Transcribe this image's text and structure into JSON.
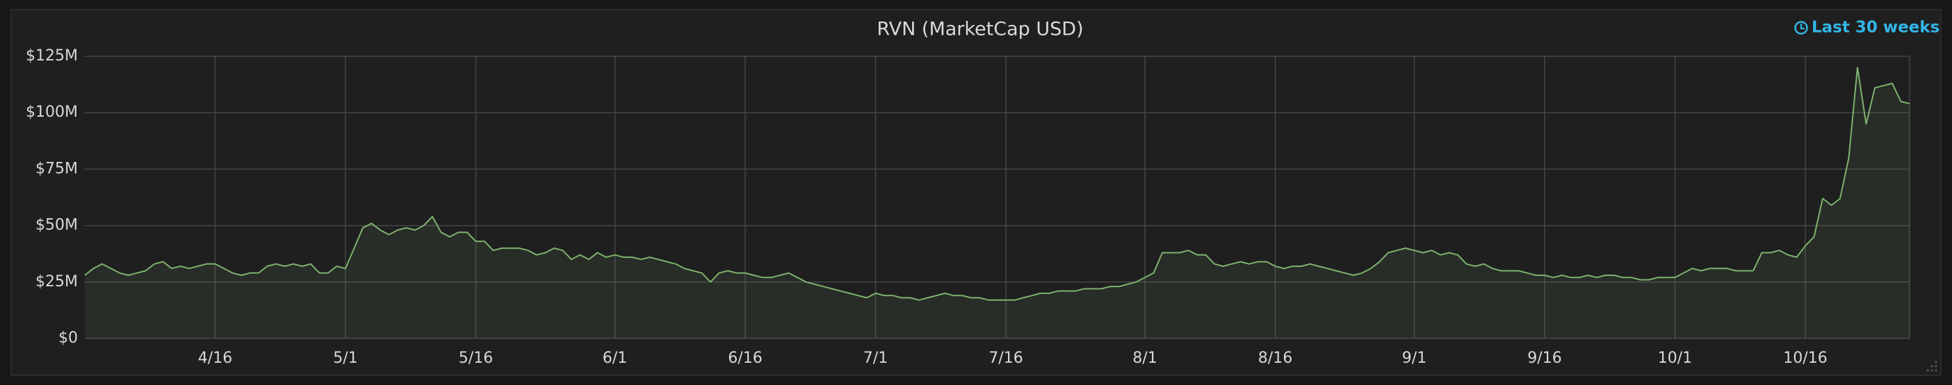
{
  "chart_data": {
    "type": "line",
    "title": "RVN (MarketCap USD)",
    "time_range": "Last 30 weeks",
    "categories": [
      null,
      null,
      null,
      null,
      null,
      null,
      null,
      null,
      null,
      null,
      null,
      null,
      null,
      null,
      null,
      "4/16",
      null,
      null,
      null,
      null,
      null,
      null,
      null,
      null,
      null,
      null,
      null,
      null,
      null,
      null,
      "5/1",
      null,
      null,
      null,
      null,
      null,
      null,
      null,
      null,
      null,
      null,
      null,
      null,
      null,
      null,
      "5/16",
      null,
      null,
      null,
      null,
      null,
      null,
      null,
      null,
      null,
      null,
      null,
      null,
      null,
      null,
      null,
      "6/1",
      null,
      null,
      null,
      null,
      null,
      null,
      null,
      null,
      null,
      null,
      null,
      null,
      null,
      null,
      "6/16",
      null,
      null,
      null,
      null,
      null,
      null,
      null,
      null,
      null,
      null,
      null,
      null,
      null,
      null,
      "7/1",
      null,
      null,
      null,
      null,
      null,
      null,
      null,
      null,
      null,
      null,
      null,
      null,
      null,
      null,
      "7/16",
      null,
      null,
      null,
      null,
      null,
      null,
      null,
      null,
      null,
      null,
      null,
      null,
      null,
      null,
      null,
      "8/1",
      null,
      null,
      null,
      null,
      null,
      null,
      null,
      null,
      null,
      null,
      null,
      null,
      null,
      null,
      "8/16",
      null,
      null,
      null,
      null,
      null,
      null,
      null,
      null,
      null,
      null,
      null,
      null,
      null,
      null,
      null,
      "9/1",
      null,
      null,
      null,
      null,
      null,
      null,
      null,
      null,
      null,
      null,
      null,
      null,
      null,
      null,
      "9/16",
      null,
      null,
      null,
      null,
      null,
      null,
      null,
      null,
      null,
      null,
      null,
      null,
      null,
      null,
      "10/1",
      null,
      null,
      null,
      null,
      null,
      null,
      null,
      null,
      null,
      null,
      null,
      null,
      null,
      null,
      "10/16",
      null,
      null,
      null,
      null,
      null,
      null,
      null,
      null,
      null,
      null,
      null,
      null
    ],
    "values": [
      28,
      31,
      33,
      31,
      29,
      28,
      29,
      30,
      33,
      34,
      31,
      32,
      31,
      32,
      33,
      33,
      31,
      29,
      28,
      29,
      29,
      32,
      33,
      32,
      33,
      32,
      33,
      29,
      29,
      32,
      31,
      40,
      49,
      51,
      48,
      46,
      48,
      49,
      48,
      50,
      54,
      47,
      45,
      47,
      47,
      43,
      43,
      39,
      40,
      40,
      40,
      39,
      37,
      38,
      40,
      39,
      35,
      37,
      35,
      38,
      36,
      37,
      36,
      36,
      35,
      36,
      35,
      34,
      33,
      31,
      30,
      29,
      25,
      29,
      30,
      29,
      29,
      28,
      27,
      27,
      28,
      29,
      27,
      25,
      24,
      23,
      22,
      21,
      20,
      19,
      18,
      20,
      19,
      19,
      18,
      18,
      17,
      18,
      19,
      20,
      19,
      19,
      18,
      18,
      17,
      17,
      17,
      17,
      18,
      19,
      20,
      20,
      21,
      21,
      21,
      22,
      22,
      22,
      23,
      23,
      24,
      25,
      27,
      29,
      38,
      38,
      38,
      39,
      37,
      37,
      33,
      32,
      33,
      34,
      33,
      34,
      34,
      32,
      31,
      32,
      32,
      33,
      32,
      31,
      30,
      29,
      28,
      29,
      31,
      34,
      38,
      39,
      40,
      39,
      38,
      39,
      37,
      38,
      37,
      33,
      32,
      33,
      31,
      30,
      30,
      30,
      29,
      28,
      28,
      27,
      28,
      27,
      27,
      28,
      27,
      28,
      28,
      27,
      27,
      26,
      26,
      27,
      27,
      27,
      29,
      31,
      30,
      31,
      31,
      31,
      30,
      30,
      30,
      38,
      38,
      39,
      37,
      36,
      41,
      45,
      62,
      59,
      62,
      80,
      120,
      95,
      111,
      112,
      113,
      105,
      104
    ],
    "color": "#7eb26d",
    "ylim": [
      0,
      125
    ],
    "yticks": [
      {
        "value": 0,
        "label": "$0"
      },
      {
        "value": 25,
        "label": "$25M"
      },
      {
        "value": 50,
        "label": "$50M"
      },
      {
        "value": 75,
        "label": "$75M"
      },
      {
        "value": 100,
        "label": "$100M"
      },
      {
        "value": 125,
        "label": "$125M"
      }
    ],
    "grid": true
  }
}
